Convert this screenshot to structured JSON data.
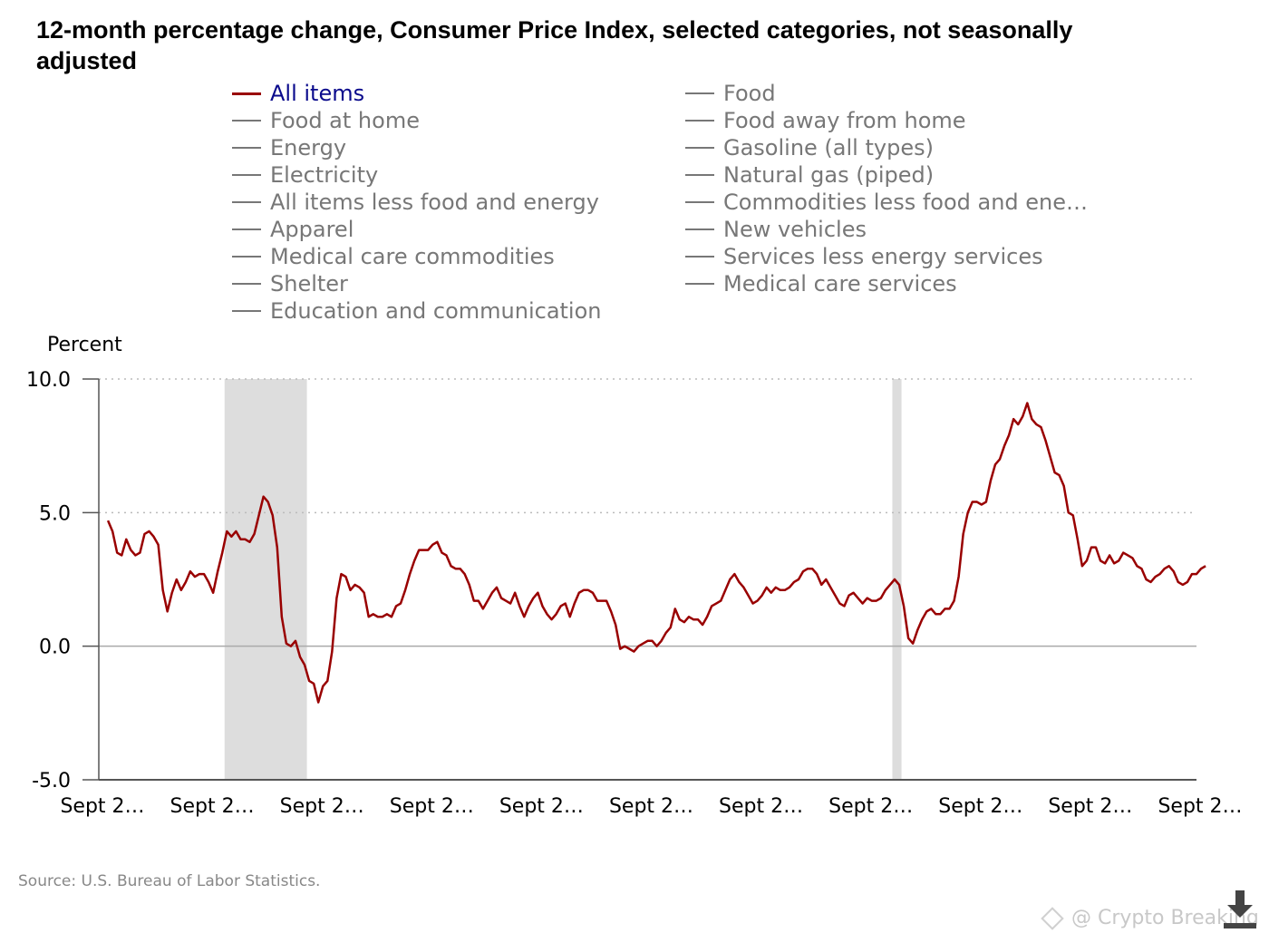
{
  "title": "12-month percentage change, Consumer Price Index, selected categories, not seasonally adjusted",
  "legend": [
    {
      "label": "All items",
      "active": true
    },
    {
      "label": "Food",
      "active": false
    },
    {
      "label": "Food at home",
      "active": false
    },
    {
      "label": "Food away from home",
      "active": false
    },
    {
      "label": "Energy",
      "active": false
    },
    {
      "label": "Gasoline (all types)",
      "active": false
    },
    {
      "label": "Electricity",
      "active": false
    },
    {
      "label": "Natural gas (piped)",
      "active": false
    },
    {
      "label": "All items less food and energy",
      "active": false
    },
    {
      "label": "Commodities less food and ener…",
      "active": false
    },
    {
      "label": "Apparel",
      "active": false
    },
    {
      "label": "New vehicles",
      "active": false
    },
    {
      "label": "Medical care commodities",
      "active": false
    },
    {
      "label": "Services less energy services",
      "active": false
    },
    {
      "label": "Shelter",
      "active": false
    },
    {
      "label": "Medical care services",
      "active": false
    },
    {
      "label": "Education and communication",
      "active": false
    }
  ],
  "source": "Source: U.S. Bureau of Labor Statistics.",
  "watermark": "@ Crypto Breaking",
  "colors": {
    "series": "#990000",
    "legend_inactive": "#777777",
    "legend_active_text": "#0a0a8c",
    "recession": "#dddddd",
    "grid": "#bbbbbb"
  },
  "icons": {
    "download": "download-arrow-icon",
    "watermark": "diamond-logo-icon"
  },
  "chart_data": {
    "type": "line",
    "ylabel": "Percent",
    "ylim": [
      -5,
      10
    ],
    "yticks": [
      -5,
      0,
      5,
      10
    ],
    "ytick_labels": [
      "-5.0",
      "0.0",
      "5.0",
      "10.0"
    ],
    "grid": "horizontal dotted",
    "xlim": [
      0,
      240
    ],
    "xtick_positions": [
      0,
      24,
      48,
      72,
      96,
      120,
      144,
      168,
      192,
      216,
      240
    ],
    "xtick_labels": [
      "Sept 2…",
      "Sept 2…",
      "Sept 2…",
      "Sept 2…",
      "Sept 2…",
      "Sept 2…",
      "Sept 2…",
      "Sept 2…",
      "Sept 2…",
      "Sept 2…",
      "Sept 2…"
    ],
    "recessions": [
      [
        27.5,
        45.5
      ],
      [
        173.5,
        175.5
      ]
    ],
    "series": [
      {
        "name": "All items",
        "color": "#990000",
        "values": [
          4.7,
          4.3,
          3.5,
          3.4,
          4.0,
          3.6,
          3.4,
          3.5,
          4.2,
          4.3,
          4.1,
          3.8,
          2.1,
          1.3,
          2.0,
          2.5,
          2.1,
          2.4,
          2.8,
          2.6,
          2.7,
          2.7,
          2.4,
          2.0,
          2.8,
          3.5,
          4.3,
          4.1,
          4.3,
          4.0,
          4.0,
          3.9,
          4.2,
          4.9,
          5.6,
          5.4,
          4.9,
          3.7,
          1.1,
          0.1,
          0.0,
          0.2,
          -0.4,
          -0.7,
          -1.3,
          -1.4,
          -2.1,
          -1.5,
          -1.3,
          -0.2,
          1.8,
          2.7,
          2.6,
          2.1,
          2.3,
          2.2,
          2.0,
          1.1,
          1.2,
          1.1,
          1.1,
          1.2,
          1.1,
          1.5,
          1.6,
          2.1,
          2.7,
          3.2,
          3.6,
          3.6,
          3.6,
          3.8,
          3.9,
          3.5,
          3.4,
          3.0,
          2.9,
          2.9,
          2.7,
          2.3,
          1.7,
          1.7,
          1.4,
          1.7,
          2.0,
          2.2,
          1.8,
          1.7,
          1.6,
          2.0,
          1.5,
          1.1,
          1.5,
          1.8,
          2.0,
          1.5,
          1.2,
          1.0,
          1.2,
          1.5,
          1.6,
          1.1,
          1.6,
          2.0,
          2.1,
          2.1,
          2.0,
          1.7,
          1.7,
          1.7,
          1.3,
          0.8,
          -0.1,
          0.0,
          -0.1,
          -0.2,
          0.0,
          0.1,
          0.2,
          0.2,
          0.0,
          0.2,
          0.5,
          0.7,
          1.4,
          1.0,
          0.9,
          1.1,
          1.0,
          1.0,
          0.8,
          1.1,
          1.5,
          1.6,
          1.7,
          2.1,
          2.5,
          2.7,
          2.4,
          2.2,
          1.9,
          1.6,
          1.7,
          1.9,
          2.2,
          2.0,
          2.2,
          2.1,
          2.1,
          2.2,
          2.4,
          2.5,
          2.8,
          2.9,
          2.9,
          2.7,
          2.3,
          2.5,
          2.2,
          1.9,
          1.6,
          1.5,
          1.9,
          2.0,
          1.8,
          1.6,
          1.8,
          1.7,
          1.7,
          1.8,
          2.1,
          2.3,
          2.5,
          2.3,
          1.5,
          0.3,
          0.1,
          0.6,
          1.0,
          1.3,
          1.4,
          1.2,
          1.2,
          1.4,
          1.4,
          1.7,
          2.6,
          4.2,
          5.0,
          5.4,
          5.4,
          5.3,
          5.4,
          6.2,
          6.8,
          7.0,
          7.5,
          7.9,
          8.5,
          8.3,
          8.6,
          9.1,
          8.5,
          8.3,
          8.2,
          7.7,
          7.1,
          6.5,
          6.4,
          6.0,
          5.0,
          4.9,
          4.0,
          3.0,
          3.2,
          3.7,
          3.7,
          3.2,
          3.1,
          3.4,
          3.1,
          3.2,
          3.5,
          3.4,
          3.3,
          3.0,
          2.9,
          2.5,
          2.4,
          2.6,
          2.7,
          2.9,
          3.0,
          2.8,
          2.4,
          2.3,
          2.4,
          2.7,
          2.7,
          2.9,
          3.0
        ]
      }
    ]
  }
}
